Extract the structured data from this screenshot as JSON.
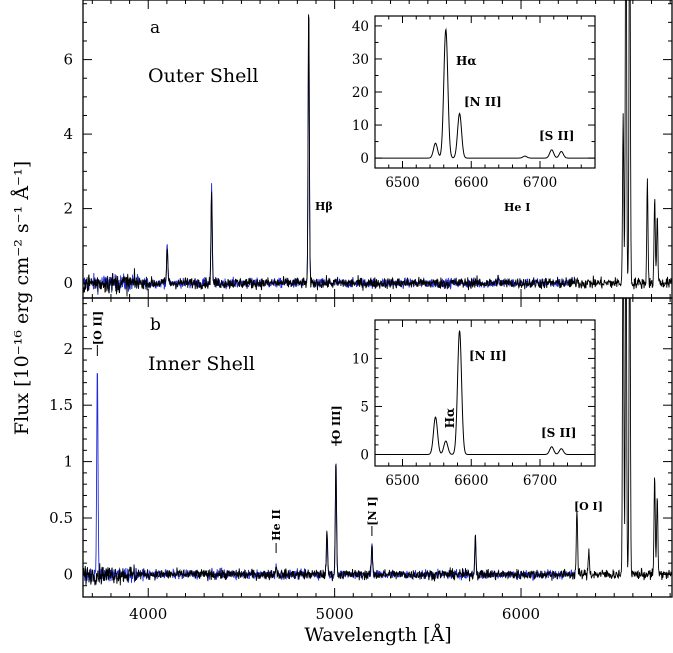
{
  "figure": {
    "xlabel": "Wavelength [Å]",
    "ylabel": "Flux [10⁻¹⁶ erg cm⁻² s⁻¹ Å⁻¹]",
    "colors": {
      "black_series": "#000000",
      "blue_series": "#1f2bd6"
    }
  },
  "chart_data": [
    {
      "type": "line",
      "panel": "a",
      "title": "Outer Shell",
      "xlim": [
        3650,
        6810
      ],
      "ylim": [
        -0.4,
        7.6
      ],
      "xticks": [
        4000,
        5000,
        6000
      ],
      "xticks_labeled": false,
      "yticks": [
        0,
        2,
        4,
        6
      ],
      "series": [
        {
          "color": "blue",
          "x_range": [
            3650,
            6290
          ],
          "noise_sigma": 0.13
        },
        {
          "color": "black",
          "x_range": [
            3650,
            6810
          ],
          "noise_sigma": 0.15
        }
      ],
      "emission_lines": [
        {
          "x": 4102,
          "peak": 1.0
        },
        {
          "x": 4340,
          "peak": 2.55
        },
        {
          "x": 4861,
          "peak": 7.4,
          "label": "Hβ"
        },
        {
          "x": 5876,
          "peak": 0.15
        },
        {
          "x": 6300,
          "peak": 0.1
        },
        {
          "x": 5650,
          "peak": 0.0
        },
        {
          "x": 6338,
          "peak": 0.0
        },
        {
          "x": 6678,
          "peak": 2.2,
          "label": "He I",
          "label_at": 6378
        },
        {
          "x": 6548,
          "peak": 4.5
        },
        {
          "x": 6563,
          "peak": 12.0
        },
        {
          "x": 6583,
          "peak": 12.0
        },
        {
          "x": 6717,
          "peak": 2.3
        },
        {
          "x": 6731,
          "peak": 1.85
        },
        {
          "x": 6678,
          "peak": 0.55,
          "label_at": 6678
        }
      ],
      "inset": {
        "xlim": [
          6460,
          6780
        ],
        "ylim": [
          -3,
          43
        ],
        "xticks": [
          6500,
          6600,
          6700
        ],
        "yticks": [
          0,
          10,
          20,
          30,
          40
        ],
        "lines": [
          {
            "x": 6548,
            "peak": 4.5
          },
          {
            "x": 6563,
            "peak": 39,
            "label": "Hα"
          },
          {
            "x": 6583,
            "peak": 13.5,
            "label": "[N II]"
          },
          {
            "x": 6678,
            "peak": 0.6
          },
          {
            "x": 6717,
            "peak": 2.5,
            "label": "[S II]"
          },
          {
            "x": 6731,
            "peak": 2.0
          }
        ]
      }
    },
    {
      "type": "line",
      "panel": "b",
      "title": "Inner Shell",
      "xlim": [
        3650,
        6810
      ],
      "ylim": [
        -0.2,
        2.45
      ],
      "xticks": [
        4000,
        5000,
        6000
      ],
      "xtick_labels": [
        "4000",
        "5000",
        "6000"
      ],
      "yticks": [
        0,
        0.5,
        1,
        1.5,
        2
      ],
      "ytick_labels": [
        "0",
        "0.5",
        "1",
        "1.5",
        "2"
      ],
      "series": [
        {
          "color": "blue",
          "x_range": [
            3650,
            6290
          ],
          "noise_sigma": 0.04
        },
        {
          "color": "black",
          "x_range": [
            3650,
            6810
          ],
          "noise_sigma": 0.045
        }
      ],
      "emission_lines": [
        {
          "x": 3727,
          "peak": 1.88,
          "series": "blue",
          "label": "[O II]"
        },
        {
          "x": 4686,
          "peak": 0.08,
          "label": "He II"
        },
        {
          "x": 4959,
          "peak": 0.38
        },
        {
          "x": 5007,
          "peak": 1.02,
          "label": "[O III]"
        },
        {
          "x": 5200,
          "peak": 0.26,
          "label": "[N I]"
        },
        {
          "x": 5755,
          "peak": 0.34
        },
        {
          "x": 6300,
          "peak": 0.6,
          "label": "[O I]"
        },
        {
          "x": 6364,
          "peak": 0.22
        },
        {
          "x": 6548,
          "peak": 3.5
        },
        {
          "x": 6563,
          "peak": 3.5
        },
        {
          "x": 6583,
          "peak": 3.5
        },
        {
          "x": 6717,
          "peak": 0.88
        },
        {
          "x": 6731,
          "peak": 0.7
        }
      ],
      "inset": {
        "xlim": [
          6460,
          6780
        ],
        "ylim": [
          -1.2,
          14
        ],
        "xticks": [
          6500,
          6600,
          6700
        ],
        "yticks": [
          0,
          5,
          10
        ],
        "lines": [
          {
            "x": 6548,
            "peak": 3.9
          },
          {
            "x": 6563,
            "peak": 1.4,
            "label": "Hα"
          },
          {
            "x": 6583,
            "peak": 12.9,
            "label": "[N II]"
          },
          {
            "x": 6717,
            "peak": 0.8,
            "label": "[S II]"
          },
          {
            "x": 6731,
            "peak": 0.6
          }
        ]
      }
    }
  ]
}
